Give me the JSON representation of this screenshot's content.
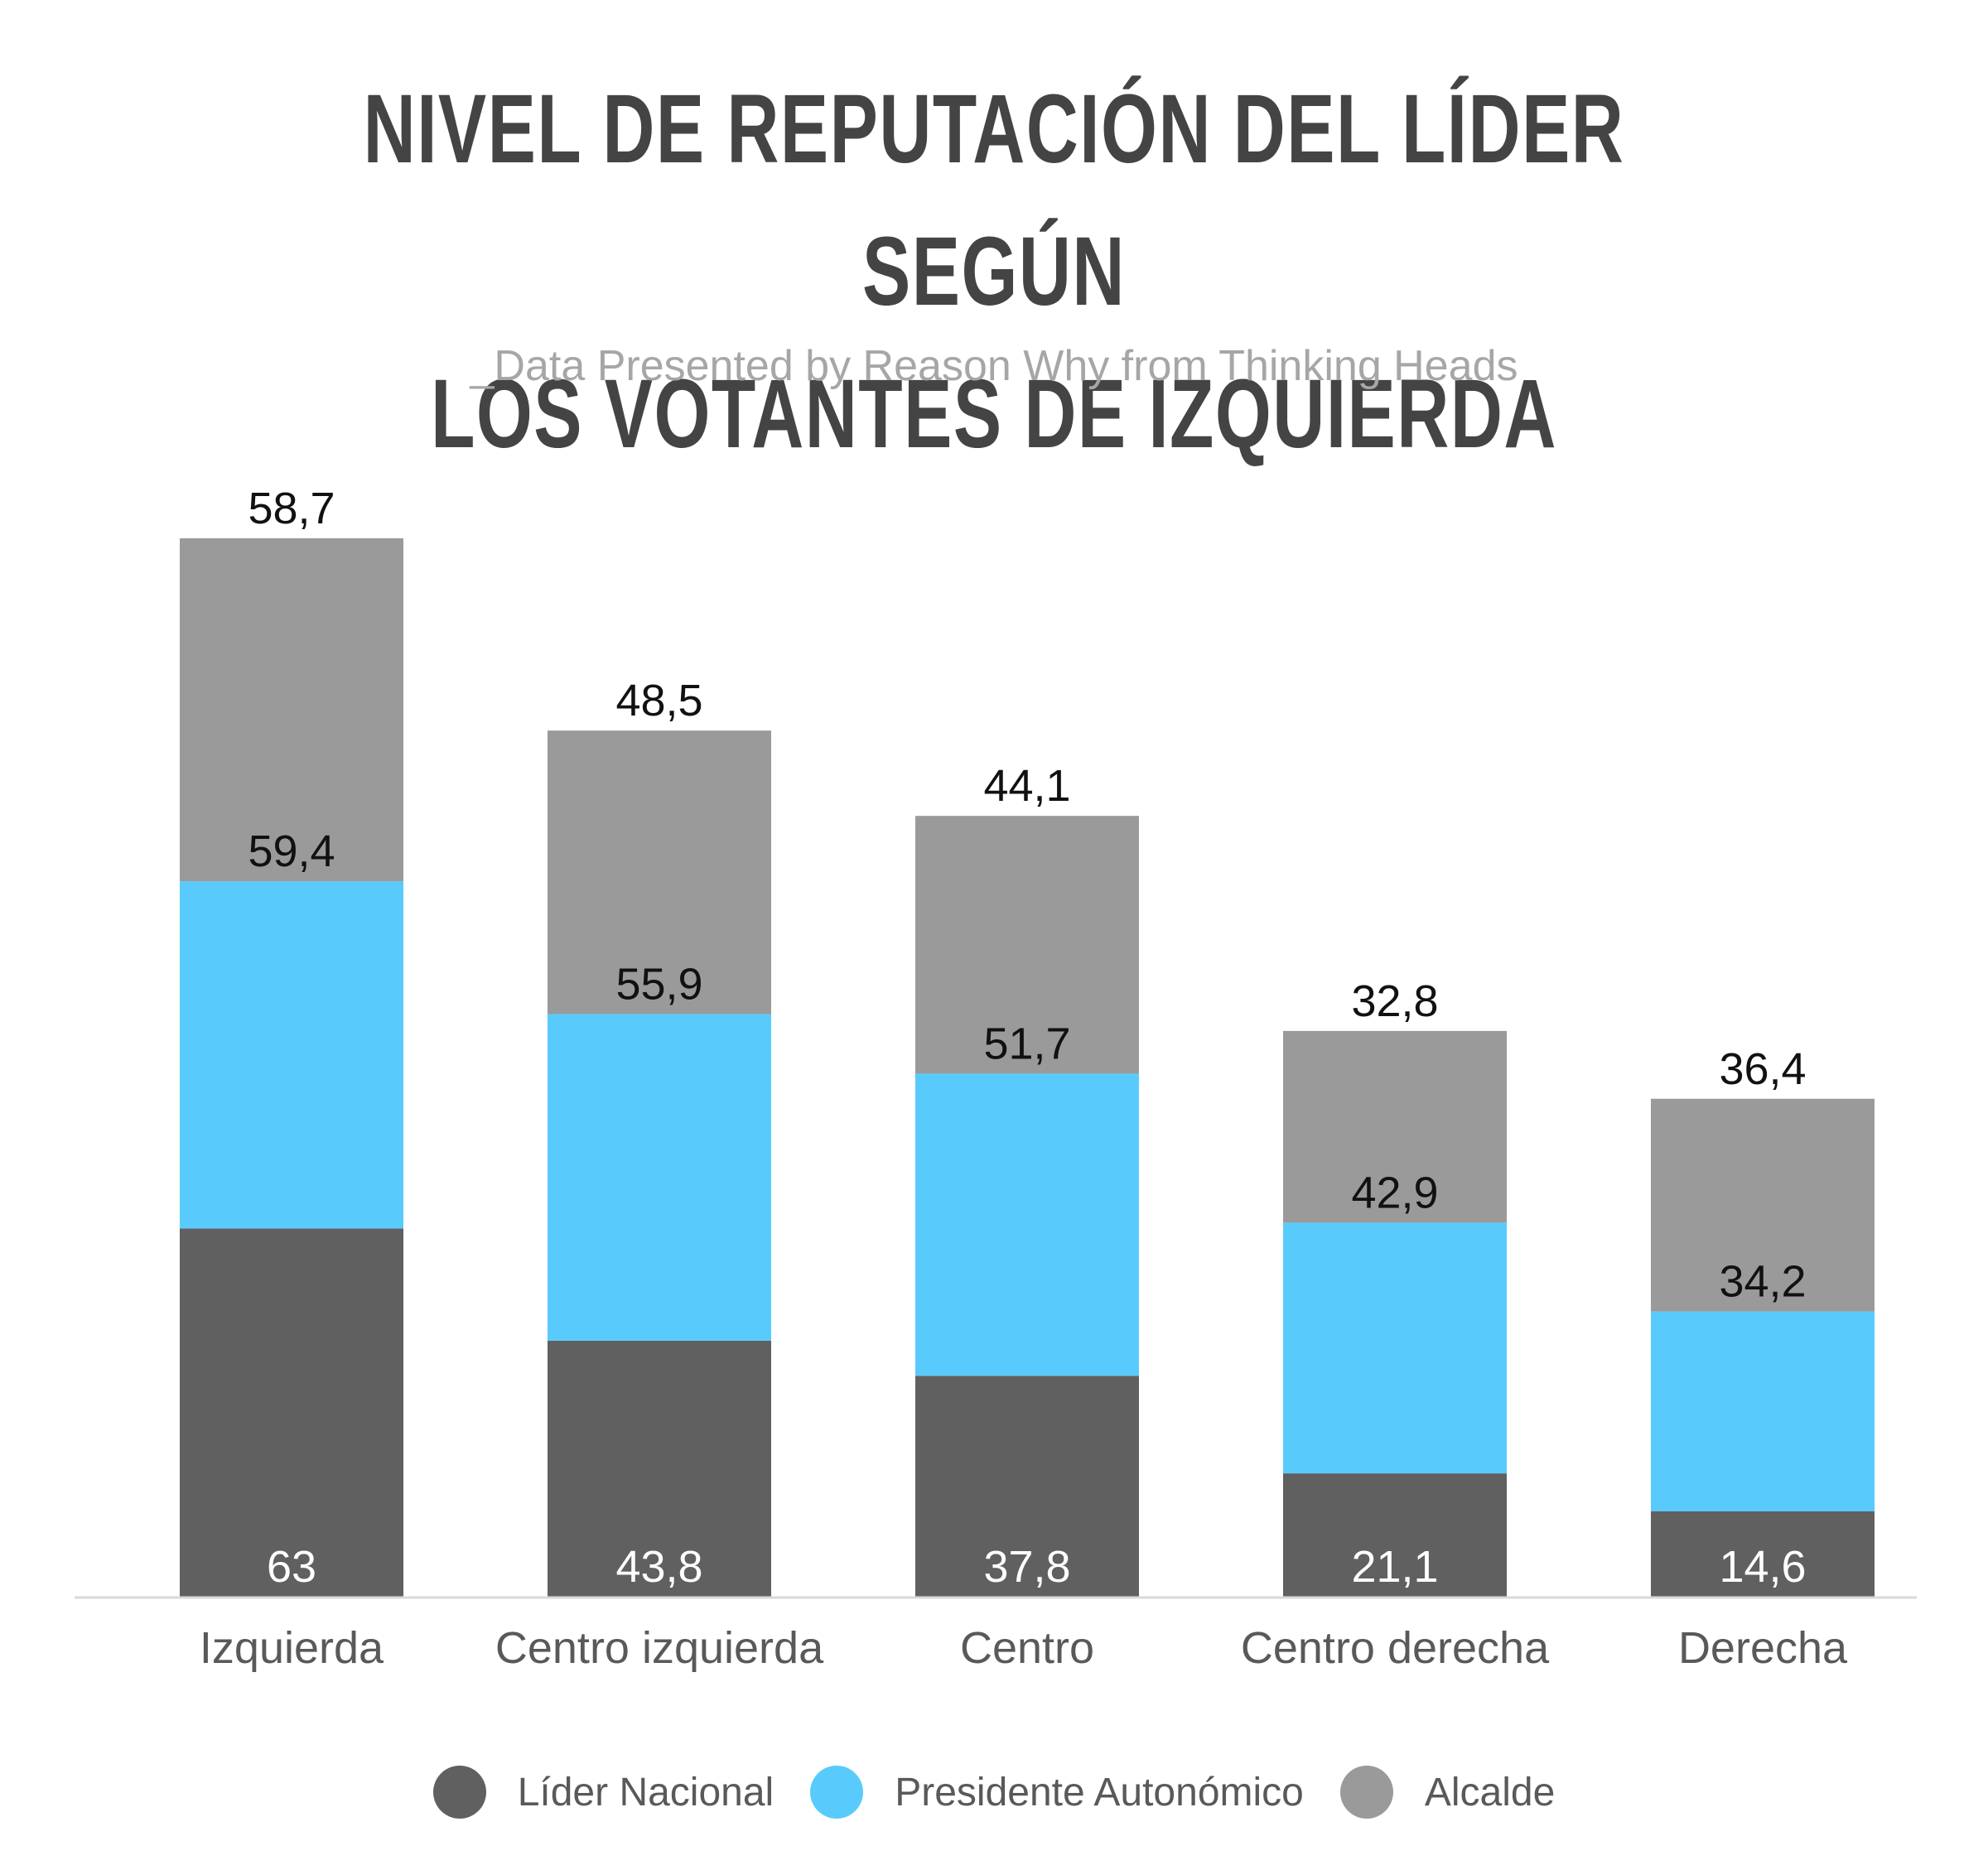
{
  "title_line1": "NIVEL DE REPUTACIÓN DEL LÍDER SEGÚN",
  "title_line2": "LOS VOTANTES DE IZQUIERDA",
  "subtitle": "_Data Presented by Reason Why from Thinking Heads",
  "chart_data": {
    "type": "bar",
    "stacked": true,
    "title": "NIVEL DE REPUTACIÓN DEL LÍDER SEGÚN LOS VOTANTES DE IZQUIERDA",
    "subtitle": "_Data Presented by Reason Why from Thinking Heads",
    "xlabel": "",
    "ylabel": "",
    "categories": [
      "Izquierda",
      "Centro izquierda",
      "Centro",
      "Centro derecha",
      "Derecha"
    ],
    "series": [
      {
        "name": "Líder Nacional",
        "color": "#606060",
        "label_color": "#ffffff",
        "values": [
          63,
          43.8,
          37.8,
          21.1,
          14.6
        ],
        "labels": [
          "63",
          "43,8",
          "37,8",
          "21,1",
          "14,6"
        ]
      },
      {
        "name": "Presidente Autonómico",
        "color": "#58cbfc",
        "label_color": "#111111",
        "values": [
          59.4,
          55.9,
          51.7,
          42.9,
          34.2
        ],
        "labels": [
          "59,4",
          "55,9",
          "51,7",
          "42,9",
          "34,2"
        ]
      },
      {
        "name": "Alcalde",
        "color": "#9a9a9a",
        "label_color": "#111111",
        "values": [
          58.7,
          48.5,
          44.1,
          32.8,
          36.4
        ],
        "labels": [
          "58,7",
          "48,5",
          "44,1",
          "32,8",
          "36,4"
        ]
      }
    ],
    "ylim": [
      0,
      181.1
    ],
    "grid": false,
    "y_axis_visible": false,
    "legend_position": "bottom"
  }
}
